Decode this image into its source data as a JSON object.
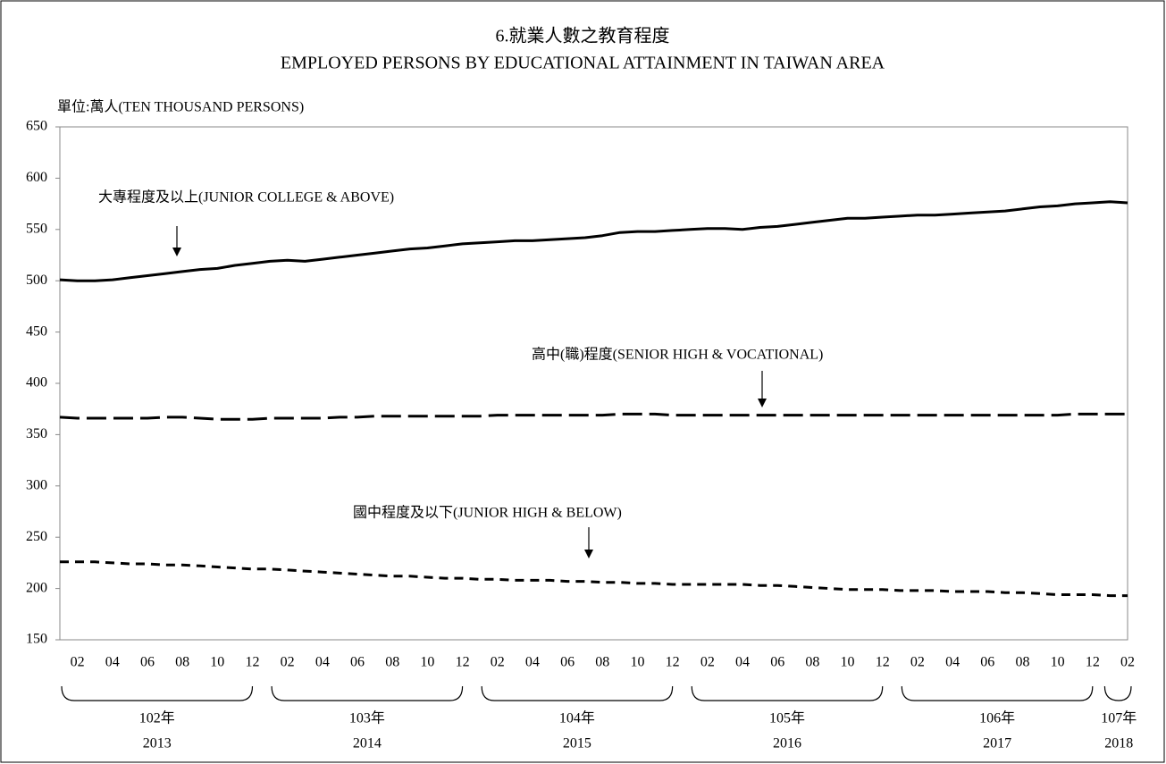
{
  "chart_data": {
    "type": "line",
    "title": "6.就業人數之教育程度",
    "subtitle": "EMPLOYED PERSONS BY EDUCATIONAL ATTAINMENT IN TAIWAN AREA",
    "y_label": "單位:萬人(TEN THOUSAND PERSONS)",
    "categories": [
      null,
      "02",
      null,
      "04",
      null,
      "06",
      null,
      "08",
      null,
      "10",
      null,
      "12",
      null,
      "02",
      null,
      "04",
      null,
      "06",
      null,
      "08",
      null,
      "10",
      null,
      "12",
      null,
      "02",
      null,
      "04",
      null,
      "06",
      null,
      "08",
      null,
      "10",
      null,
      "12",
      null,
      "02",
      null,
      "04",
      null,
      "06",
      null,
      "08",
      null,
      "10",
      null,
      "12",
      null,
      "02",
      null,
      "04",
      null,
      "06",
      null,
      "08",
      null,
      "10",
      null,
      "12",
      null,
      "02"
    ],
    "years": [
      {
        "roc": "102年",
        "label": "2013"
      },
      {
        "roc": "103年",
        "label": "2014"
      },
      {
        "roc": "104年",
        "label": "2015"
      },
      {
        "roc": "105年",
        "label": "2016"
      },
      {
        "roc": "106年",
        "label": "2017"
      },
      {
        "roc": "107年",
        "label": "2018"
      }
    ],
    "series": [
      {
        "name": "大專程度及以上(JUNIOR COLLEGE & ABOVE)",
        "color": "#000000",
        "dash": "solid",
        "values": [
          501,
          500,
          500,
          501,
          503,
          505,
          507,
          509,
          511,
          512,
          515,
          517,
          519,
          520,
          519,
          521,
          523,
          525,
          527,
          529,
          531,
          532,
          534,
          536,
          537,
          538,
          539,
          539,
          540,
          541,
          542,
          544,
          547,
          548,
          548,
          549,
          550,
          551,
          551,
          550,
          552,
          553,
          555,
          557,
          559,
          561,
          561,
          562,
          563,
          564,
          564,
          565,
          566,
          567,
          568,
          570,
          572,
          573,
          575,
          576,
          577,
          576
        ]
      },
      {
        "name": "高中(職)程度(SENIOR HIGH & VOCATIONAL)",
        "color": "#000000",
        "dash": "long",
        "values": [
          367,
          366,
          366,
          366,
          366,
          366,
          367,
          367,
          366,
          365,
          365,
          365,
          366,
          366,
          366,
          366,
          367,
          367,
          368,
          368,
          368,
          368,
          368,
          368,
          368,
          369,
          369,
          369,
          369,
          369,
          369,
          369,
          370,
          370,
          370,
          369,
          369,
          369,
          369,
          369,
          369,
          369,
          369,
          369,
          369,
          369,
          369,
          369,
          369,
          369,
          369,
          369,
          369,
          369,
          369,
          369,
          369,
          369,
          370,
          370,
          370,
          370
        ]
      },
      {
        "name": "國中程度及以下(JUNIOR HIGH & BELOW)",
        "color": "#000000",
        "dash": "short",
        "values": [
          226,
          226,
          226,
          225,
          224,
          224,
          223,
          223,
          222,
          221,
          220,
          219,
          219,
          218,
          217,
          216,
          215,
          214,
          213,
          212,
          212,
          211,
          210,
          210,
          209,
          209,
          208,
          208,
          208,
          207,
          207,
          206,
          206,
          205,
          205,
          204,
          204,
          204,
          204,
          204,
          203,
          203,
          202,
          201,
          200,
          199,
          199,
          199,
          198,
          198,
          198,
          197,
          197,
          197,
          196,
          196,
          195,
          194,
          194,
          194,
          193,
          193
        ]
      }
    ],
    "ylim": [
      150,
      650
    ],
    "yticks": [
      150,
      200,
      250,
      300,
      350,
      400,
      450,
      500,
      550,
      600,
      650
    ],
    "grid": false
  }
}
